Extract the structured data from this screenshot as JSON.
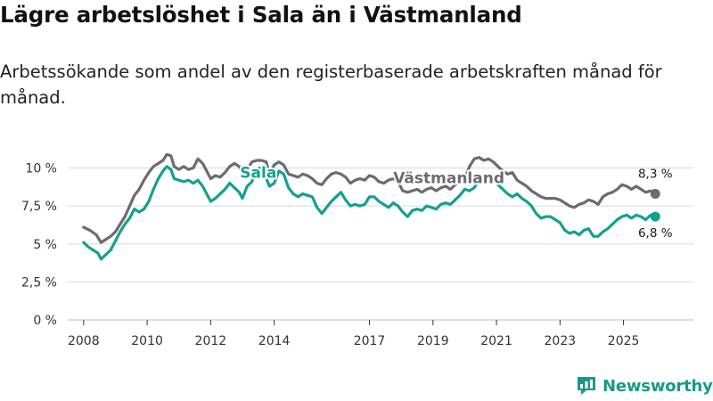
{
  "title": "Lägre arbetslöshet i Sala än i Västmanland",
  "subtitle": "Arbetssökande som andel av den registerbaserade arbetskraften månad för månad.",
  "brand": "Newsworthy",
  "colors": {
    "sala": "#14a090",
    "vastmanland": "#6c6c70",
    "grid": "#d9d9d9",
    "brand": "#179a86"
  },
  "chart_data": {
    "type": "line",
    "xlim": [
      2007.5,
      2027.2
    ],
    "ylim": [
      0,
      10.5
    ],
    "x_ticks": [
      {
        "value": 2008,
        "label": "2008"
      },
      {
        "value": 2010,
        "label": "2010"
      },
      {
        "value": 2012,
        "label": "2012"
      },
      {
        "value": 2014,
        "label": "2014"
      },
      {
        "value": 2017,
        "label": "2017"
      },
      {
        "value": 2019,
        "label": "2019"
      },
      {
        "value": 2021,
        "label": "2021"
      },
      {
        "value": 2023,
        "label": "2023"
      },
      {
        "value": 2025,
        "label": "2025"
      }
    ],
    "y_ticks": [
      {
        "value": 0,
        "label": "0 %"
      },
      {
        "value": 2.5,
        "label": "2,5 %"
      },
      {
        "value": 5,
        "label": "5 %"
      },
      {
        "value": 7.5,
        "label": "7,5 %"
      },
      {
        "value": 10,
        "label": "10 %"
      }
    ],
    "series": [
      {
        "name": "Västmanland",
        "label": "Västmanland",
        "label_at": [
          2019.5,
          9.0
        ],
        "end_label": "8,3 %",
        "points": [
          [
            2008.0,
            6.1
          ],
          [
            2008.2,
            5.9
          ],
          [
            2008.4,
            5.6
          ],
          [
            2008.55,
            5.1
          ],
          [
            2008.7,
            5.3
          ],
          [
            2008.85,
            5.5
          ],
          [
            2009.0,
            5.8
          ],
          [
            2009.15,
            6.3
          ],
          [
            2009.3,
            6.8
          ],
          [
            2009.45,
            7.5
          ],
          [
            2009.6,
            8.2
          ],
          [
            2009.75,
            8.6
          ],
          [
            2009.9,
            9.2
          ],
          [
            2010.05,
            9.7
          ],
          [
            2010.2,
            10.1
          ],
          [
            2010.35,
            10.3
          ],
          [
            2010.5,
            10.5
          ],
          [
            2010.62,
            10.9
          ],
          [
            2010.75,
            10.8
          ],
          [
            2010.85,
            10.1
          ],
          [
            2011.0,
            9.9
          ],
          [
            2011.15,
            10.1
          ],
          [
            2011.3,
            9.9
          ],
          [
            2011.45,
            10.0
          ],
          [
            2011.6,
            10.6
          ],
          [
            2011.75,
            10.3
          ],
          [
            2011.9,
            9.7
          ],
          [
            2012.0,
            9.3
          ],
          [
            2012.15,
            9.5
          ],
          [
            2012.3,
            9.4
          ],
          [
            2012.45,
            9.7
          ],
          [
            2012.6,
            10.1
          ],
          [
            2012.75,
            10.3
          ],
          [
            2012.9,
            10.1
          ],
          [
            2013.0,
            9.7
          ],
          [
            2013.15,
            9.9
          ],
          [
            2013.3,
            10.4
          ],
          [
            2013.45,
            10.5
          ],
          [
            2013.6,
            10.5
          ],
          [
            2013.75,
            10.4
          ],
          [
            2013.85,
            9.6
          ],
          [
            2014.0,
            10.2
          ],
          [
            2014.15,
            10.4
          ],
          [
            2014.3,
            10.2
          ],
          [
            2014.45,
            9.6
          ],
          [
            2014.6,
            9.5
          ],
          [
            2014.75,
            9.4
          ],
          [
            2014.9,
            9.6
          ],
          [
            2015.05,
            9.5
          ],
          [
            2015.2,
            9.3
          ],
          [
            2015.35,
            9.0
          ],
          [
            2015.5,
            8.9
          ],
          [
            2015.65,
            9.3
          ],
          [
            2015.8,
            9.6
          ],
          [
            2015.95,
            9.7
          ],
          [
            2016.1,
            9.6
          ],
          [
            2016.25,
            9.4
          ],
          [
            2016.4,
            9.0
          ],
          [
            2016.55,
            9.2
          ],
          [
            2016.7,
            9.3
          ],
          [
            2016.85,
            9.2
          ],
          [
            2017.0,
            9.5
          ],
          [
            2017.15,
            9.4
          ],
          [
            2017.3,
            9.1
          ],
          [
            2017.45,
            9.0
          ],
          [
            2017.6,
            9.2
          ],
          [
            2017.75,
            9.3
          ],
          [
            2017.9,
            9.1
          ],
          [
            2018.05,
            8.5
          ],
          [
            2018.2,
            8.4
          ],
          [
            2018.35,
            8.5
          ],
          [
            2018.5,
            8.6
          ],
          [
            2018.65,
            8.4
          ],
          [
            2018.8,
            8.6
          ],
          [
            2018.95,
            8.7
          ],
          [
            2019.1,
            8.5
          ],
          [
            2019.25,
            8.7
          ],
          [
            2019.4,
            8.8
          ],
          [
            2019.55,
            8.6
          ],
          [
            2019.7,
            8.9
          ],
          [
            2019.85,
            9.1
          ],
          [
            2020.0,
            9.3
          ],
          [
            2020.15,
            10.1
          ],
          [
            2020.3,
            10.6
          ],
          [
            2020.45,
            10.7
          ],
          [
            2020.6,
            10.5
          ],
          [
            2020.75,
            10.6
          ],
          [
            2020.9,
            10.4
          ],
          [
            2021.05,
            10.1
          ],
          [
            2021.2,
            9.8
          ],
          [
            2021.35,
            9.6
          ],
          [
            2021.5,
            9.7
          ],
          [
            2021.65,
            9.2
          ],
          [
            2021.8,
            9.0
          ],
          [
            2021.95,
            8.8
          ],
          [
            2022.1,
            8.5
          ],
          [
            2022.25,
            8.3
          ],
          [
            2022.4,
            8.1
          ],
          [
            2022.55,
            8.0
          ],
          [
            2022.7,
            8.0
          ],
          [
            2022.85,
            8.0
          ],
          [
            2023.0,
            7.9
          ],
          [
            2023.15,
            7.7
          ],
          [
            2023.3,
            7.5
          ],
          [
            2023.45,
            7.4
          ],
          [
            2023.6,
            7.6
          ],
          [
            2023.75,
            7.7
          ],
          [
            2023.9,
            7.9
          ],
          [
            2024.05,
            7.8
          ],
          [
            2024.2,
            7.6
          ],
          [
            2024.35,
            8.1
          ],
          [
            2024.5,
            8.3
          ],
          [
            2024.65,
            8.4
          ],
          [
            2024.8,
            8.6
          ],
          [
            2024.95,
            8.9
          ],
          [
            2025.1,
            8.8
          ],
          [
            2025.25,
            8.6
          ],
          [
            2025.4,
            8.8
          ],
          [
            2025.55,
            8.6
          ],
          [
            2025.7,
            8.4
          ],
          [
            2025.85,
            8.5
          ],
          [
            2026.0,
            8.3
          ]
        ]
      },
      {
        "name": "Sala",
        "label": "Sala",
        "label_at": [
          2013.5,
          9.35
        ],
        "end_label": "6,8 %",
        "points": [
          [
            2008.0,
            5.1
          ],
          [
            2008.15,
            4.8
          ],
          [
            2008.3,
            4.6
          ],
          [
            2008.45,
            4.4
          ],
          [
            2008.55,
            4.0
          ],
          [
            2008.7,
            4.3
          ],
          [
            2008.85,
            4.6
          ],
          [
            2009.0,
            5.2
          ],
          [
            2009.15,
            5.8
          ],
          [
            2009.3,
            6.3
          ],
          [
            2009.45,
            6.7
          ],
          [
            2009.6,
            7.3
          ],
          [
            2009.75,
            7.1
          ],
          [
            2009.9,
            7.3
          ],
          [
            2010.05,
            7.8
          ],
          [
            2010.2,
            8.6
          ],
          [
            2010.35,
            9.3
          ],
          [
            2010.5,
            9.8
          ],
          [
            2010.62,
            10.1
          ],
          [
            2010.75,
            9.9
          ],
          [
            2010.85,
            9.3
          ],
          [
            2011.0,
            9.2
          ],
          [
            2011.15,
            9.1
          ],
          [
            2011.3,
            9.2
          ],
          [
            2011.45,
            9.0
          ],
          [
            2011.6,
            9.2
          ],
          [
            2011.75,
            8.8
          ],
          [
            2011.9,
            8.2
          ],
          [
            2012.0,
            7.8
          ],
          [
            2012.15,
            8.0
          ],
          [
            2012.3,
            8.3
          ],
          [
            2012.45,
            8.6
          ],
          [
            2012.6,
            9.0
          ],
          [
            2012.75,
            8.7
          ],
          [
            2012.9,
            8.4
          ],
          [
            2013.0,
            8.0
          ],
          [
            2013.15,
            8.8
          ],
          [
            2013.3,
            9.1
          ],
          [
            2013.42,
            9.9
          ],
          [
            2013.55,
            10.0
          ],
          [
            2013.7,
            9.6
          ],
          [
            2013.85,
            8.8
          ],
          [
            2014.0,
            9.0
          ],
          [
            2014.15,
            9.8
          ],
          [
            2014.3,
            9.6
          ],
          [
            2014.45,
            8.7
          ],
          [
            2014.6,
            8.3
          ],
          [
            2014.75,
            8.1
          ],
          [
            2014.9,
            8.3
          ],
          [
            2015.05,
            8.2
          ],
          [
            2015.2,
            8.1
          ],
          [
            2015.35,
            7.4
          ],
          [
            2015.5,
            7.0
          ],
          [
            2015.65,
            7.4
          ],
          [
            2015.8,
            7.8
          ],
          [
            2015.95,
            8.1
          ],
          [
            2016.1,
            8.4
          ],
          [
            2016.25,
            7.9
          ],
          [
            2016.4,
            7.5
          ],
          [
            2016.55,
            7.6
          ],
          [
            2016.7,
            7.5
          ],
          [
            2016.85,
            7.6
          ],
          [
            2017.0,
            8.1
          ],
          [
            2017.15,
            8.1
          ],
          [
            2017.3,
            7.8
          ],
          [
            2017.45,
            7.6
          ],
          [
            2017.6,
            7.4
          ],
          [
            2017.75,
            7.7
          ],
          [
            2017.9,
            7.5
          ],
          [
            2018.05,
            7.1
          ],
          [
            2018.2,
            6.8
          ],
          [
            2018.35,
            7.2
          ],
          [
            2018.5,
            7.3
          ],
          [
            2018.65,
            7.2
          ],
          [
            2018.8,
            7.5
          ],
          [
            2018.95,
            7.4
          ],
          [
            2019.1,
            7.3
          ],
          [
            2019.25,
            7.6
          ],
          [
            2019.4,
            7.7
          ],
          [
            2019.55,
            7.6
          ],
          [
            2019.7,
            7.9
          ],
          [
            2019.85,
            8.2
          ],
          [
            2020.0,
            8.6
          ],
          [
            2020.15,
            8.5
          ],
          [
            2020.3,
            8.7
          ],
          [
            2020.45,
            9.2
          ],
          [
            2020.6,
            9.4
          ],
          [
            2020.75,
            9.1
          ],
          [
            2020.9,
            9.3
          ],
          [
            2021.05,
            8.9
          ],
          [
            2021.2,
            8.6
          ],
          [
            2021.35,
            8.3
          ],
          [
            2021.5,
            8.1
          ],
          [
            2021.65,
            8.3
          ],
          [
            2021.8,
            8.0
          ],
          [
            2021.95,
            7.8
          ],
          [
            2022.1,
            7.5
          ],
          [
            2022.25,
            7.0
          ],
          [
            2022.4,
            6.7
          ],
          [
            2022.55,
            6.8
          ],
          [
            2022.7,
            6.8
          ],
          [
            2022.85,
            6.6
          ],
          [
            2023.0,
            6.4
          ],
          [
            2023.15,
            5.9
          ],
          [
            2023.3,
            5.7
          ],
          [
            2023.45,
            5.8
          ],
          [
            2023.6,
            5.6
          ],
          [
            2023.75,
            5.9
          ],
          [
            2023.9,
            6.0
          ],
          [
            2024.05,
            5.5
          ],
          [
            2024.2,
            5.5
          ],
          [
            2024.35,
            5.8
          ],
          [
            2024.5,
            6.0
          ],
          [
            2024.65,
            6.3
          ],
          [
            2024.8,
            6.6
          ],
          [
            2024.95,
            6.8
          ],
          [
            2025.1,
            6.9
          ],
          [
            2025.25,
            6.7
          ],
          [
            2025.4,
            6.9
          ],
          [
            2025.55,
            6.8
          ],
          [
            2025.7,
            6.6
          ],
          [
            2025.85,
            6.9
          ],
          [
            2026.0,
            6.8
          ]
        ]
      }
    ]
  }
}
